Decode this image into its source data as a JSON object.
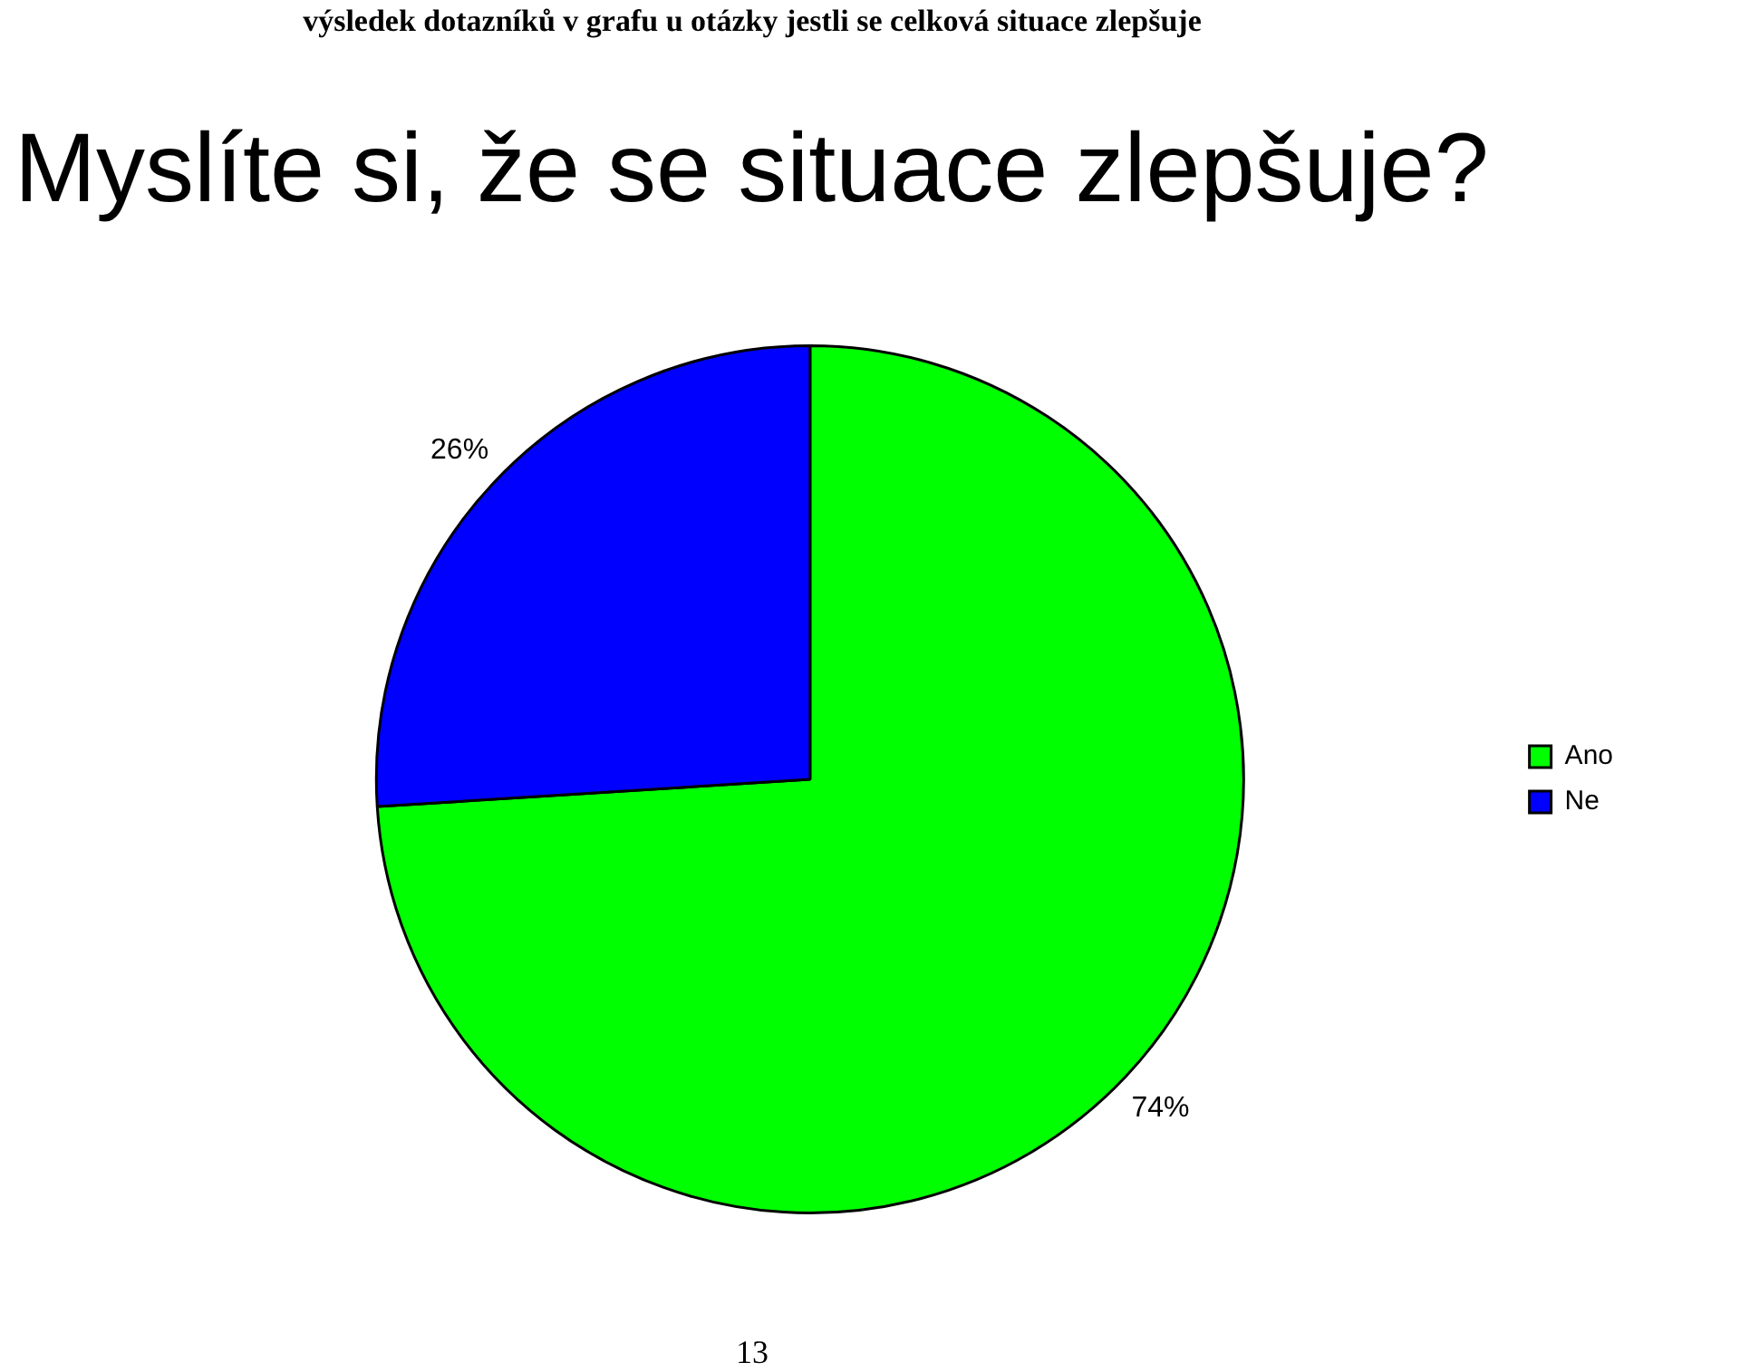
{
  "chart_data": {
    "type": "pie",
    "subtitle": "výsledek dotazníků v grafu u otázky jestli se celková situace zlepšuje",
    "title": "Myslíte si, že se situace zlepšuje?",
    "categories": [
      "Ano",
      "Ne"
    ],
    "values": [
      74,
      26
    ],
    "colors": [
      "#00ff00",
      "#0000ff"
    ],
    "value_labels": [
      "74%",
      "26%"
    ],
    "legend": "right",
    "annotations": [
      "13"
    ]
  }
}
